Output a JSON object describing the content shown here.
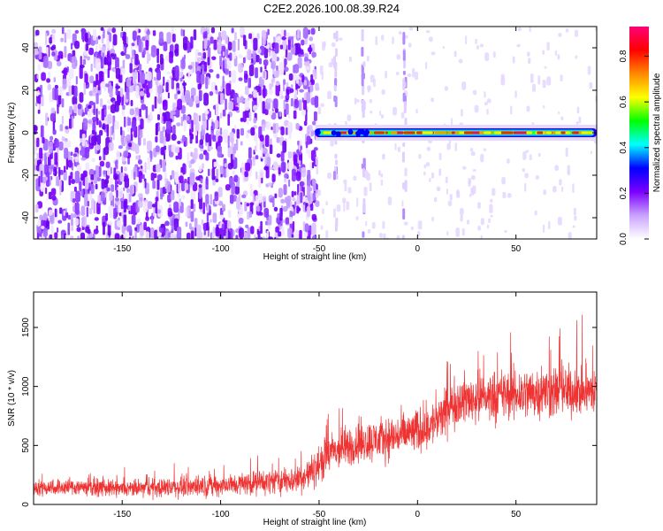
{
  "title": "C2E2.2026.100.08.39.R24",
  "chart_data": [
    {
      "type": "heatmap",
      "xlabel": "Height of straight line (km)",
      "ylabel": "Frequency (Hz)",
      "xlim": [
        -195,
        91
      ],
      "ylim": [
        -50,
        50
      ],
      "xticks": [
        -150,
        -100,
        -50,
        0,
        50
      ],
      "yticks": [
        -40,
        -20,
        0,
        20,
        40
      ],
      "colorbar": {
        "label": "Normalized spectral amplitude",
        "range": [
          0.0,
          0.93
        ],
        "ticks": [
          0.0,
          0.2,
          0.4,
          0.6,
          0.8
        ],
        "colors": [
          "#ffffff",
          "#c9a2ff",
          "#7b00ff",
          "#0000ff",
          "#00ffff",
          "#00ff00",
          "#ffff00",
          "#ff8800",
          "#ff0000",
          "#ff0077"
        ]
      },
      "features": {
        "noise_region_x": [
          -195,
          -52
        ],
        "signal_start_x": -52,
        "signal_center_freq": 0,
        "signal_band_x": [
          -52,
          91
        ],
        "vertical_streaks_x": [
          -42,
          -28,
          -7
        ]
      }
    },
    {
      "type": "line",
      "xlabel": "Height of straight line (km)",
      "ylabel": "SNR (10 * v/v)",
      "xlim": [
        -195,
        91
      ],
      "ylim": [
        0,
        1800
      ],
      "xticks": [
        -150,
        -100,
        -50,
        0,
        50
      ],
      "yticks": [
        0,
        500,
        1000,
        1500
      ],
      "color": "#ee3333",
      "x": [
        -195,
        -170,
        -150,
        -120,
        -100,
        -80,
        -60,
        -52,
        -45,
        -30,
        -10,
        0,
        10,
        20,
        40,
        60,
        80,
        91
      ],
      "y": [
        140,
        150,
        130,
        150,
        160,
        190,
        210,
        300,
        430,
        520,
        580,
        620,
        700,
        880,
        920,
        950,
        960,
        950
      ],
      "spread": [
        100,
        110,
        100,
        130,
        130,
        150,
        170,
        220,
        250,
        260,
        270,
        280,
        280,
        300,
        320,
        330,
        320,
        300
      ]
    }
  ]
}
